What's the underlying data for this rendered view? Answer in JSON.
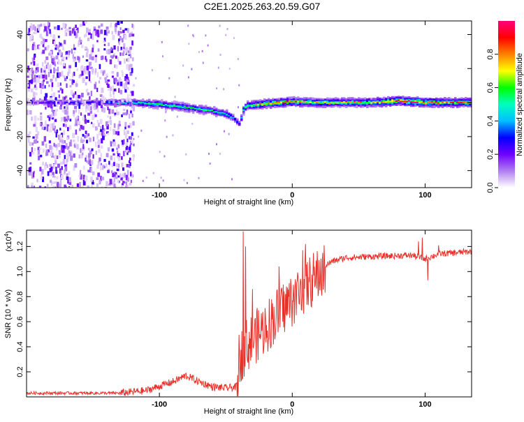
{
  "title": "C2E1.2025.263.20.59.G07",
  "chart_data": [
    {
      "type": "heatmap",
      "name": "spectrogram",
      "xlabel": "Height of straight line (km)",
      "ylabel": "Frequency (Hz)",
      "xlim": [
        -200,
        135
      ],
      "ylim": [
        -50,
        48
      ],
      "xticks": [
        -100,
        0,
        100
      ],
      "xtick_labels": [
        "-100",
        "0",
        "100"
      ],
      "yticks": [
        -40,
        -20,
        0,
        20,
        40
      ],
      "ytick_labels": [
        "-40",
        "-20",
        "0",
        "20",
        "40"
      ],
      "colorbar": {
        "label": "Normalized spectral amplitude",
        "range": [
          0,
          1
        ],
        "ticks": [
          0,
          0.2,
          0.4,
          0.6,
          0.8
        ],
        "tick_labels": [
          "0.0",
          "0.2",
          "0.4",
          "0.6",
          "0.8"
        ],
        "colors": [
          "#ffffff",
          "#b07ef0",
          "#7000ff",
          "#0000ff",
          "#00bfff",
          "#00ffbf",
          "#00ff00",
          "#ffff00",
          "#ff8000",
          "#ff0000",
          "#ff0080"
        ]
      },
      "ridge": {
        "x": [
          -200,
          -150,
          -120,
          -100,
          -80,
          -60,
          -50,
          -45,
          -40,
          -38,
          -35,
          -25,
          -10,
          0,
          20,
          40,
          60,
          80,
          100,
          135
        ],
        "freq_hz": [
          0,
          0,
          0,
          -1,
          -3,
          -5,
          -7,
          -9,
          -13,
          -5,
          -2,
          -1,
          0,
          0.5,
          0,
          0,
          0,
          1,
          0,
          0
        ],
        "amplitude": [
          0.2,
          0.3,
          0.45,
          0.55,
          0.55,
          0.5,
          0.5,
          0.35,
          0.3,
          0.5,
          0.6,
          0.75,
          0.85,
          0.8,
          0.7,
          0.7,
          0.72,
          0.95,
          0.85,
          0.75
        ]
      },
      "noise_region_x": [
        -200,
        -120
      ]
    },
    {
      "type": "line",
      "name": "snr",
      "xlabel": "Height of straight line (km)",
      "ylabel": "SNR (10 * v/v)",
      "scale_label": "(x10",
      "scale_exponent": "4",
      "unit_scale": 10000,
      "color": "#e8312a",
      "xlim": [
        -200,
        135
      ],
      "ylim": [
        0,
        1.33
      ],
      "xticks": [
        -100,
        0,
        100
      ],
      "xtick_labels": [
        "-100",
        "0",
        "100"
      ],
      "yticks": [
        0.2,
        0.4,
        0.6,
        0.8,
        1.0,
        1.2
      ],
      "ytick_labels": [
        "0.2",
        "0.4",
        "0.6",
        "0.8",
        "1.0",
        "1.2"
      ],
      "envelope": {
        "x": [
          -200,
          -130,
          -110,
          -90,
          -80,
          -70,
          -60,
          -50,
          -42,
          -40,
          -35,
          -30,
          -20,
          -10,
          0,
          10,
          20,
          30,
          40,
          60,
          90,
          100,
          110,
          135
        ],
        "y": [
          0.03,
          0.03,
          0.05,
          0.12,
          0.17,
          0.12,
          0.08,
          0.07,
          0.08,
          0.35,
          0.45,
          0.5,
          0.6,
          0.72,
          0.82,
          0.93,
          1.02,
          1.08,
          1.11,
          1.12,
          1.13,
          1.1,
          1.14,
          1.16
        ]
      },
      "spikes": [
        {
          "x": -37,
          "y": 1.32
        },
        {
          "x": -35,
          "y": 1.2
        },
        {
          "x": -30,
          "y": 0.86
        },
        {
          "x": -10,
          "y": 1.04
        },
        {
          "x": 8,
          "y": 1.17
        },
        {
          "x": 10,
          "y": 1.22
        },
        {
          "x": 95,
          "y": 1.24
        },
        {
          "x": 98,
          "y": 1.27
        },
        {
          "x": 102,
          "y": 0.93
        },
        {
          "x": 110,
          "y": 1.21
        }
      ]
    }
  ]
}
